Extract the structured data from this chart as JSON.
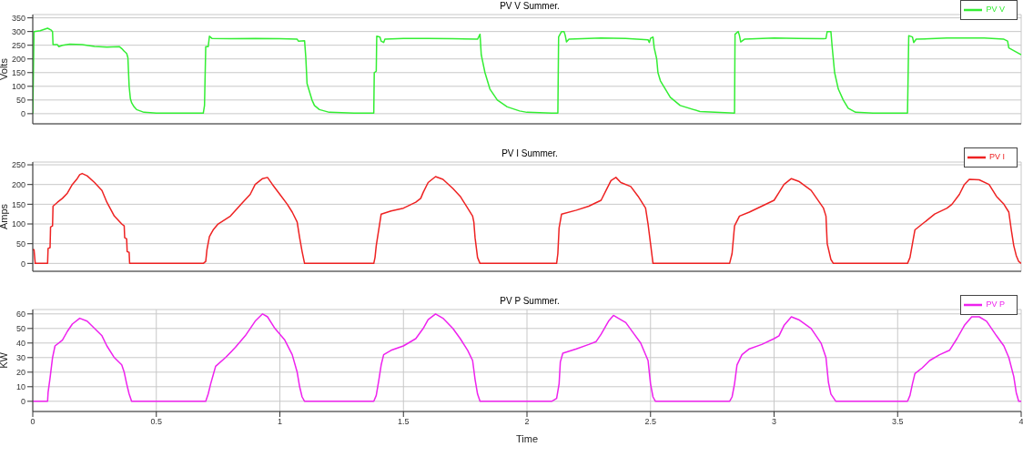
{
  "chart_data": [
    {
      "type": "line",
      "title": "PV V Summer.",
      "ylabel": "Volts",
      "xlim": [
        0,
        4
      ],
      "xticks": [
        0,
        0.5,
        1,
        1.5,
        2,
        2.5,
        3,
        3.5,
        4
      ],
      "ylim": [
        -37,
        362
      ],
      "yticks": [
        0,
        50,
        100,
        150,
        200,
        250,
        300,
        350
      ],
      "grid": true,
      "legend": "top right",
      "tick_labels": "y",
      "series": [
        {
          "name": "PV V",
          "color": "#33ee33",
          "x": [
            0,
            0.005,
            0.03,
            0.06,
            0.075,
            0.08,
            0.082,
            0.1,
            0.105,
            0.12,
            0.15,
            0.2,
            0.25,
            0.3,
            0.35,
            0.36,
            0.37,
            0.38,
            0.385,
            0.39,
            0.395,
            0.4,
            0.41,
            0.42,
            0.45,
            0.5,
            0.6,
            0.69,
            0.695,
            0.7,
            0.71,
            0.715,
            0.725,
            0.8,
            0.9,
            1.0,
            1.07,
            1.075,
            1.1,
            1.105,
            1.11,
            1.12,
            1.13,
            1.14,
            1.16,
            1.2,
            1.3,
            1.38,
            1.382,
            1.39,
            1.392,
            1.405,
            1.41,
            1.42,
            1.425,
            1.5,
            1.6,
            1.7,
            1.8,
            1.81,
            1.815,
            1.83,
            1.85,
            1.88,
            1.92,
            1.97,
            2.0,
            2.1,
            2.125,
            2.128,
            2.14,
            2.15,
            2.155,
            2.16,
            2.17,
            2.3,
            2.4,
            2.49,
            2.495,
            2.5,
            2.51,
            2.515,
            2.525,
            2.53,
            2.54,
            2.56,
            2.58,
            2.62,
            2.7,
            2.84,
            2.842,
            2.855,
            2.86,
            2.865,
            2.88,
            3.0,
            3.1,
            3.2,
            3.21,
            3.215,
            3.23,
            3.235,
            3.245,
            3.26,
            3.28,
            3.3,
            3.33,
            3.4,
            3.54,
            3.545,
            3.56,
            3.565,
            3.575,
            3.7,
            3.85,
            3.93,
            3.945,
            3.95,
            3.97,
            3.99,
            4.0
          ],
          "values": [
            0,
            300,
            303,
            312,
            305,
            300,
            252,
            252,
            245,
            250,
            254,
            252,
            246,
            243,
            245,
            238,
            228,
            220,
            205,
            100,
            55,
            40,
            25,
            15,
            5,
            2,
            2,
            2,
            30,
            245,
            245,
            283,
            275,
            274,
            275,
            274,
            272,
            265,
            266,
            205,
            110,
            80,
            50,
            30,
            15,
            5,
            2,
            2,
            150,
            155,
            283,
            280,
            265,
            260,
            272,
            275,
            275,
            274,
            272,
            290,
            215,
            150,
            90,
            50,
            25,
            10,
            5,
            2,
            2,
            280,
            300,
            300,
            285,
            262,
            272,
            276,
            275,
            270,
            260,
            275,
            280,
            240,
            200,
            150,
            120,
            90,
            60,
            30,
            8,
            2,
            290,
            300,
            285,
            262,
            272,
            276,
            275,
            274,
            275,
            300,
            300,
            245,
            150,
            90,
            50,
            20,
            5,
            2,
            2,
            285,
            280,
            260,
            272,
            276,
            276,
            272,
            265,
            240,
            230,
            220,
            215
          ]
        }
      ]
    },
    {
      "type": "line",
      "title": "PV I Summer.",
      "ylabel": "Amps",
      "xlim": [
        0,
        4
      ],
      "xticks": [
        0,
        0.5,
        1,
        1.5,
        2,
        2.5,
        3,
        3.5,
        4
      ],
      "ylim": [
        -20,
        257
      ],
      "yticks": [
        0,
        50,
        100,
        150,
        200,
        250
      ],
      "grid": true,
      "legend": "top right",
      "tick_labels": "y",
      "series": [
        {
          "name": "PV I",
          "color": "#ee2222",
          "x": [
            0,
            0.005,
            0.01,
            0.06,
            0.062,
            0.07,
            0.072,
            0.08,
            0.082,
            0.1,
            0.12,
            0.14,
            0.16,
            0.18,
            0.19,
            0.2,
            0.22,
            0.25,
            0.28,
            0.3,
            0.33,
            0.36,
            0.37,
            0.372,
            0.38,
            0.382,
            0.39,
            0.392,
            0.5,
            0.69,
            0.7,
            0.705,
            0.715,
            0.73,
            0.75,
            0.8,
            0.85,
            0.88,
            0.9,
            0.93,
            0.95,
            0.97,
            1.0,
            1.03,
            1.05,
            1.07,
            1.08,
            1.09,
            1.1,
            1.2,
            1.38,
            1.385,
            1.39,
            1.4,
            1.41,
            1.45,
            1.5,
            1.55,
            1.57,
            1.58,
            1.6,
            1.63,
            1.66,
            1.7,
            1.73,
            1.76,
            1.78,
            1.785,
            1.79,
            1.8,
            1.81,
            2.0,
            2.12,
            2.125,
            2.13,
            2.14,
            2.2,
            2.25,
            2.3,
            2.32,
            2.34,
            2.36,
            2.38,
            2.42,
            2.45,
            2.48,
            2.49,
            2.5,
            2.51,
            2.6,
            2.82,
            2.83,
            2.84,
            2.86,
            2.9,
            2.95,
            3.0,
            3.02,
            3.04,
            3.07,
            3.1,
            3.15,
            3.2,
            3.21,
            3.215,
            3.23,
            3.24,
            3.4,
            3.54,
            3.55,
            3.56,
            3.57,
            3.6,
            3.65,
            3.7,
            3.72,
            3.75,
            3.77,
            3.79,
            3.83,
            3.87,
            3.9,
            3.93,
            3.95,
            3.96,
            3.97,
            3.98,
            3.99,
            4.0
          ],
          "values": [
            35,
            35,
            0,
            0,
            38,
            40,
            92,
            95,
            145,
            155,
            165,
            178,
            200,
            215,
            225,
            228,
            222,
            205,
            185,
            155,
            120,
            100,
            95,
            65,
            62,
            30,
            28,
            0,
            0,
            0,
            5,
            35,
            68,
            85,
            100,
            120,
            155,
            175,
            200,
            215,
            218,
            200,
            175,
            150,
            130,
            105,
            65,
            30,
            0,
            0,
            0,
            15,
            45,
            85,
            125,
            133,
            140,
            155,
            165,
            180,
            205,
            220,
            213,
            190,
            170,
            140,
            120,
            105,
            65,
            15,
            0,
            0,
            0,
            25,
            90,
            125,
            135,
            145,
            160,
            185,
            210,
            218,
            205,
            195,
            170,
            140,
            100,
            50,
            0,
            0,
            0,
            25,
            95,
            120,
            130,
            145,
            160,
            180,
            200,
            215,
            208,
            185,
            140,
            120,
            50,
            10,
            0,
            0,
            0,
            15,
            50,
            85,
            100,
            125,
            140,
            150,
            175,
            200,
            213,
            212,
            200,
            170,
            150,
            130,
            85,
            45,
            20,
            5,
            0
          ]
        }
      ]
    },
    {
      "type": "line",
      "title": "PV P Summer.",
      "ylabel": "KW",
      "xlabel": "Time",
      "xlim": [
        0,
        4
      ],
      "xticks": [
        0,
        0.5,
        1,
        1.5,
        2,
        2.5,
        3,
        3.5,
        4
      ],
      "ylim": [
        -7,
        63
      ],
      "yticks": [
        0,
        10,
        20,
        30,
        40,
        50,
        60
      ],
      "grid": true,
      "legend": "top right",
      "series": [
        {
          "name": "PV P",
          "color": "#ee22ee",
          "x": [
            0,
            0.06,
            0.062,
            0.07,
            0.08,
            0.09,
            0.12,
            0.14,
            0.16,
            0.19,
            0.22,
            0.25,
            0.28,
            0.3,
            0.33,
            0.36,
            0.37,
            0.38,
            0.39,
            0.4,
            0.5,
            0.7,
            0.71,
            0.72,
            0.73,
            0.74,
            0.78,
            0.82,
            0.86,
            0.9,
            0.93,
            0.95,
            0.98,
            1.02,
            1.05,
            1.07,
            1.08,
            1.09,
            1.1,
            1.38,
            1.39,
            1.4,
            1.41,
            1.42,
            1.45,
            1.5,
            1.55,
            1.58,
            1.6,
            1.63,
            1.66,
            1.7,
            1.73,
            1.76,
            1.78,
            1.79,
            1.8,
            1.81,
            2.0,
            2.1,
            2.12,
            2.13,
            2.135,
            2.145,
            2.2,
            2.25,
            2.28,
            2.3,
            2.33,
            2.35,
            2.37,
            2.4,
            2.43,
            2.46,
            2.49,
            2.5,
            2.51,
            2.52,
            2.82,
            2.83,
            2.84,
            2.85,
            2.87,
            2.9,
            2.95,
            3.0,
            3.02,
            3.04,
            3.07,
            3.1,
            3.15,
            3.19,
            3.21,
            3.22,
            3.23,
            3.25,
            3.4,
            3.54,
            3.55,
            3.56,
            3.57,
            3.6,
            3.63,
            3.67,
            3.71,
            3.74,
            3.77,
            3.8,
            3.83,
            3.86,
            3.9,
            3.93,
            3.95,
            3.97,
            3.98,
            3.99,
            4.0
          ],
          "values": [
            0,
            0,
            6,
            16,
            30,
            38,
            42,
            48,
            53,
            57,
            55,
            50,
            45,
            38,
            30,
            25,
            20,
            12,
            5,
            0,
            0,
            0,
            5,
            12,
            18,
            24,
            30,
            37,
            45,
            55,
            60,
            58,
            50,
            42,
            32,
            20,
            10,
            3,
            0,
            0,
            4,
            14,
            25,
            32,
            35,
            38,
            43,
            50,
            56,
            60,
            57,
            50,
            43,
            35,
            28,
            15,
            5,
            0,
            0,
            0,
            2,
            12,
            27,
            33,
            36,
            39,
            41,
            46,
            55,
            59,
            57,
            54,
            47,
            40,
            28,
            12,
            3,
            0,
            0,
            3,
            12,
            25,
            32,
            36,
            39,
            43,
            45,
            52,
            58,
            56,
            50,
            40,
            30,
            13,
            5,
            0,
            0,
            0,
            4,
            12,
            19,
            23,
            28,
            32,
            35,
            43,
            52,
            58,
            58,
            55,
            45,
            38,
            30,
            17,
            6,
            0,
            0
          ]
        }
      ]
    }
  ]
}
